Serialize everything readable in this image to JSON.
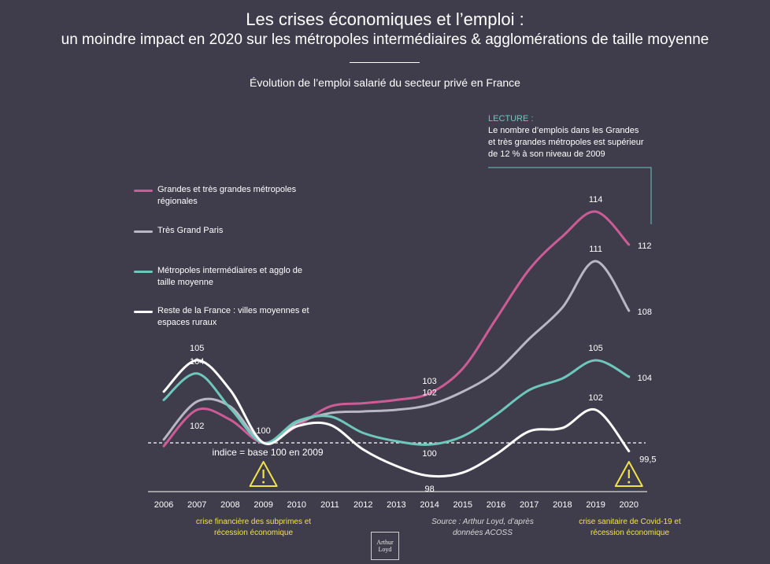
{
  "header": {
    "title": "Les crises économiques et l’emploi :",
    "subtitle": "un moindre impact en 2020 sur les métropoles intermédiaires & agglomérations de taille moyenne",
    "chart_title": "Évolution de l’emploi salarié du secteur privé en France"
  },
  "lecture": {
    "label": "LECTURE :",
    "text": "Le nombre d’emplois dans les Grandes et très grandes métropoles est supérieur de 12 % à son niveau de 2009"
  },
  "baseline_label": "indice = base 100 en 2009",
  "notes": {
    "crisis_2008": "crise financière des subprimes et récession économique",
    "source": "Source : Arthur Loyd, d’après données ACOSS",
    "crisis_2020": "crise sanitaire de Covid-19 et récession économique"
  },
  "logo_text": "Arthur Loyd",
  "chart_data": {
    "type": "line",
    "x": [
      "2006",
      "2007",
      "2008",
      "2009",
      "2010",
      "2011",
      "2012",
      "2013",
      "2014",
      "2015",
      "2016",
      "2017",
      "2018",
      "2019",
      "2020"
    ],
    "ylim": [
      97,
      116
    ],
    "baseline": 100,
    "grid": false,
    "legend_position": "left",
    "series": [
      {
        "name": "Grandes et très grandes métropoles régionales",
        "color": "#cc5c96",
        "values": [
          99.8,
          102.0,
          101.4,
          100.0,
          101.0,
          102.2,
          102.4,
          102.6,
          103.0,
          104.5,
          107.5,
          110.5,
          112.5,
          114.0,
          112.0
        ]
      },
      {
        "name": "Très Grand Paris",
        "color": "#b9b7c3",
        "values": [
          100.2,
          102.5,
          102.2,
          100.0,
          101.2,
          101.8,
          101.9,
          102.0,
          102.3,
          103.1,
          104.3,
          106.3,
          108.2,
          111.0,
          108.0
        ]
      },
      {
        "name": "Métropoles intermédiaires et agglo de taille moyenne",
        "color": "#6fc7bb",
        "values": [
          102.6,
          104.2,
          102.1,
          100.0,
          101.3,
          101.6,
          100.6,
          100.1,
          99.9,
          100.4,
          101.7,
          103.2,
          103.9,
          105.0,
          104.0
        ]
      },
      {
        "name": "Reste de la France : villes moyennes et espaces ruraux",
        "color": "#ffffff",
        "values": [
          103.1,
          105.0,
          103.2,
          100.0,
          101.0,
          101.1,
          99.6,
          98.6,
          98.0,
          98.2,
          99.3,
          100.7,
          100.9,
          102.0,
          99.5
        ]
      }
    ],
    "data_labels": [
      {
        "series": 0,
        "year": "2007",
        "text": "102"
      },
      {
        "series": 2,
        "year": "2007",
        "text": "104"
      },
      {
        "series": 3,
        "year": "2007",
        "text": "105"
      },
      {
        "series": 3,
        "year": "2009",
        "text": "100"
      },
      {
        "series": 0,
        "year": "2014",
        "text": "103"
      },
      {
        "series": 1,
        "year": "2014",
        "text": "102"
      },
      {
        "series": 2,
        "year": "2014",
        "text": "100"
      },
      {
        "series": 3,
        "year": "2014",
        "text": "98"
      },
      {
        "series": 0,
        "year": "2019",
        "text": "114"
      },
      {
        "series": 1,
        "year": "2019",
        "text": "111"
      },
      {
        "series": 2,
        "year": "2019",
        "text": "105"
      },
      {
        "series": 3,
        "year": "2019",
        "text": "102"
      },
      {
        "series": 0,
        "year": "2020",
        "text": "112"
      },
      {
        "series": 1,
        "year": "2020",
        "text": "108"
      },
      {
        "series": 2,
        "year": "2020",
        "text": "104"
      },
      {
        "series": 3,
        "year": "2020",
        "text": "99,5"
      }
    ],
    "warning_markers": [
      "2009",
      "2020"
    ],
    "colors": {
      "background": "#3f3d4b",
      "warning": "#f2e24a",
      "accent": "#6fc7bb"
    }
  }
}
